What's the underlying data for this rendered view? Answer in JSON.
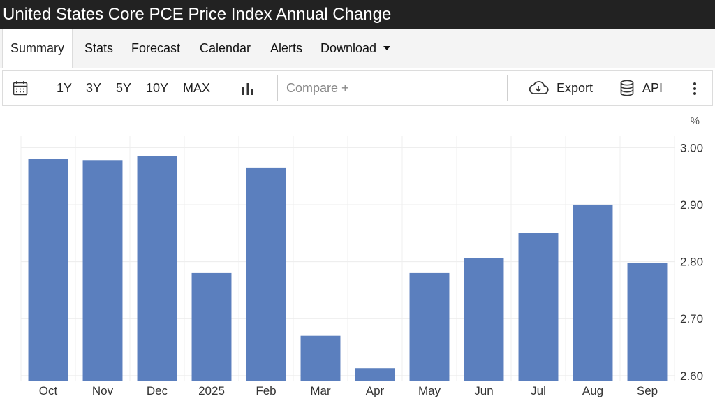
{
  "window": {
    "title": "United States Core PCE Price Index Annual Change"
  },
  "tabs": [
    {
      "label": "Summary",
      "active": true
    },
    {
      "label": "Stats"
    },
    {
      "label": "Forecast"
    },
    {
      "label": "Calendar"
    },
    {
      "label": "Alerts"
    },
    {
      "label": "Download"
    }
  ],
  "toolbar": {
    "ranges": [
      "1Y",
      "3Y",
      "5Y",
      "10Y",
      "MAX"
    ],
    "compare_placeholder": "Compare +",
    "export_label": "Export",
    "api_label": "API",
    "icons": [
      "calendar-icon",
      "bar-chart-icon",
      "cloud-download-icon",
      "database-icon",
      "more-vert-icon"
    ]
  },
  "colors": {
    "bar": "#5b7fbe",
    "titlebar": "#222222",
    "tabbar": "#f4f4f4"
  },
  "chart_data": {
    "type": "bar",
    "categories": [
      "Oct",
      "Nov",
      "Dec",
      "2025",
      "Feb",
      "Mar",
      "Apr",
      "May",
      "Jun",
      "Jul",
      "Aug",
      "Sep"
    ],
    "values": [
      2.98,
      2.978,
      2.985,
      2.78,
      2.965,
      2.67,
      2.613,
      2.78,
      2.806,
      2.85,
      2.9,
      2.798
    ],
    "unit": "%",
    "yticks": [
      "3.00",
      "2.90",
      "2.80",
      "2.70",
      "2.60"
    ],
    "ylim": [
      2.59,
      3.02
    ],
    "yaxis_position": "right",
    "grid": true
  }
}
